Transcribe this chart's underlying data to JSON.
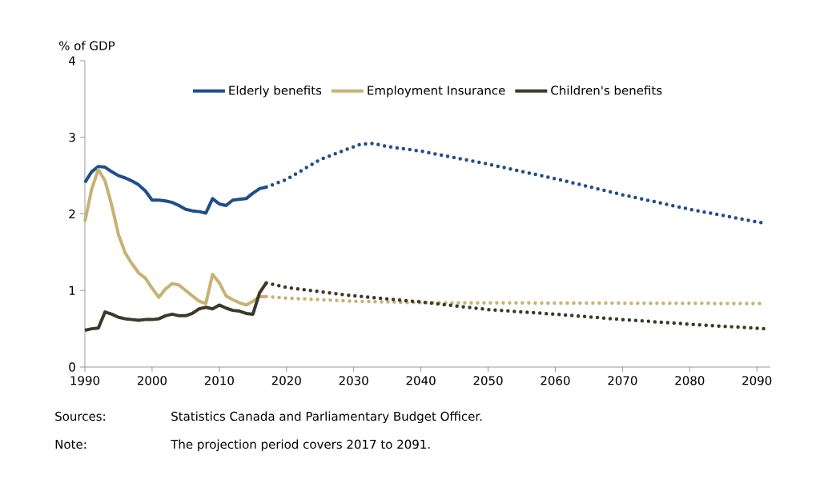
{
  "chart_data": {
    "type": "line",
    "ylabel": "% of GDP",
    "xlim": [
      1990,
      2092
    ],
    "ylim": [
      0,
      4
    ],
    "xticks": [
      1990,
      2000,
      2010,
      2020,
      2030,
      2040,
      2050,
      2060,
      2070,
      2080,
      2090
    ],
    "yticks": [
      0,
      1,
      2,
      3,
      4
    ],
    "grid": false,
    "legend": "top",
    "marker": "none",
    "annotations": [
      "Sources:",
      "Statistics Canada and Parliamentary Budget Officer.",
      "Note:",
      "The projection period covers 2017 to 2091."
    ],
    "series": [
      {
        "name": "Elderly benefits",
        "color": "#1f4e8c",
        "line_style": "solid",
        "x": [
          1990,
          1991,
          1992,
          1993,
          1994,
          1995,
          1996,
          1997,
          1998,
          1999,
          2000,
          2001,
          2002,
          2003,
          2004,
          2005,
          2006,
          2007,
          2008,
          2009,
          2010,
          2011,
          2012,
          2013,
          2014,
          2015,
          2016,
          2017
        ],
        "values": [
          2.41,
          2.55,
          2.62,
          2.61,
          2.55,
          2.5,
          2.47,
          2.43,
          2.38,
          2.3,
          2.18,
          2.18,
          2.17,
          2.15,
          2.11,
          2.06,
          2.04,
          2.03,
          2.01,
          2.2,
          2.13,
          2.11,
          2.18,
          2.19,
          2.2,
          2.27,
          2.33,
          2.35
        ]
      },
      {
        "name": "Employment Insurance",
        "color": "#c8b273",
        "line_style": "solid",
        "x": [
          1990,
          1991,
          1992,
          1993,
          1994,
          1995,
          1996,
          1997,
          1998,
          1999,
          2000,
          2001,
          2002,
          2003,
          2004,
          2005,
          2006,
          2007,
          2008,
          2009,
          2010,
          2011,
          2012,
          2013,
          2014,
          2015,
          2016,
          2017
        ],
        "values": [
          1.9,
          2.32,
          2.58,
          2.43,
          2.11,
          1.73,
          1.49,
          1.35,
          1.23,
          1.16,
          1.03,
          0.91,
          1.02,
          1.09,
          1.07,
          1.0,
          0.93,
          0.86,
          0.83,
          1.21,
          1.1,
          0.93,
          0.88,
          0.84,
          0.81,
          0.86,
          0.92,
          0.92
        ]
      },
      {
        "name": "Children's benefits",
        "color": "#3b3a2a",
        "line_style": "solid",
        "x": [
          1990,
          1991,
          1992,
          1993,
          1994,
          1995,
          1996,
          1997,
          1998,
          1999,
          2000,
          2001,
          2002,
          2003,
          2004,
          2005,
          2006,
          2007,
          2008,
          2009,
          2010,
          2011,
          2012,
          2013,
          2014,
          2015,
          2016,
          2017
        ],
        "values": [
          0.48,
          0.5,
          0.51,
          0.72,
          0.69,
          0.65,
          0.63,
          0.62,
          0.61,
          0.62,
          0.62,
          0.63,
          0.67,
          0.69,
          0.67,
          0.67,
          0.7,
          0.76,
          0.78,
          0.76,
          0.81,
          0.77,
          0.74,
          0.73,
          0.7,
          0.69,
          0.97,
          1.1
        ]
      },
      {
        "color": "#1f4e8c",
        "line_style": "dotted",
        "x": [
          2017,
          2020,
          2025,
          2031,
          2033,
          2035,
          2040,
          2050,
          2060,
          2070,
          2080,
          2091
        ],
        "values": [
          2.35,
          2.45,
          2.71,
          2.91,
          2.92,
          2.88,
          2.82,
          2.65,
          2.46,
          2.25,
          2.06,
          1.88
        ]
      },
      {
        "color": "#c8b273",
        "line_style": "dotted",
        "x": [
          2017,
          2020,
          2030,
          2040,
          2091
        ],
        "values": [
          0.92,
          0.9,
          0.86,
          0.84,
          0.83
        ]
      },
      {
        "color": "#3b3a2a",
        "line_style": "dotted",
        "x": [
          2017,
          2020,
          2030,
          2040,
          2050,
          2060,
          2070,
          2080,
          2091
        ],
        "values": [
          1.1,
          1.04,
          0.93,
          0.85,
          0.75,
          0.69,
          0.62,
          0.56,
          0.5
        ]
      }
    ]
  }
}
